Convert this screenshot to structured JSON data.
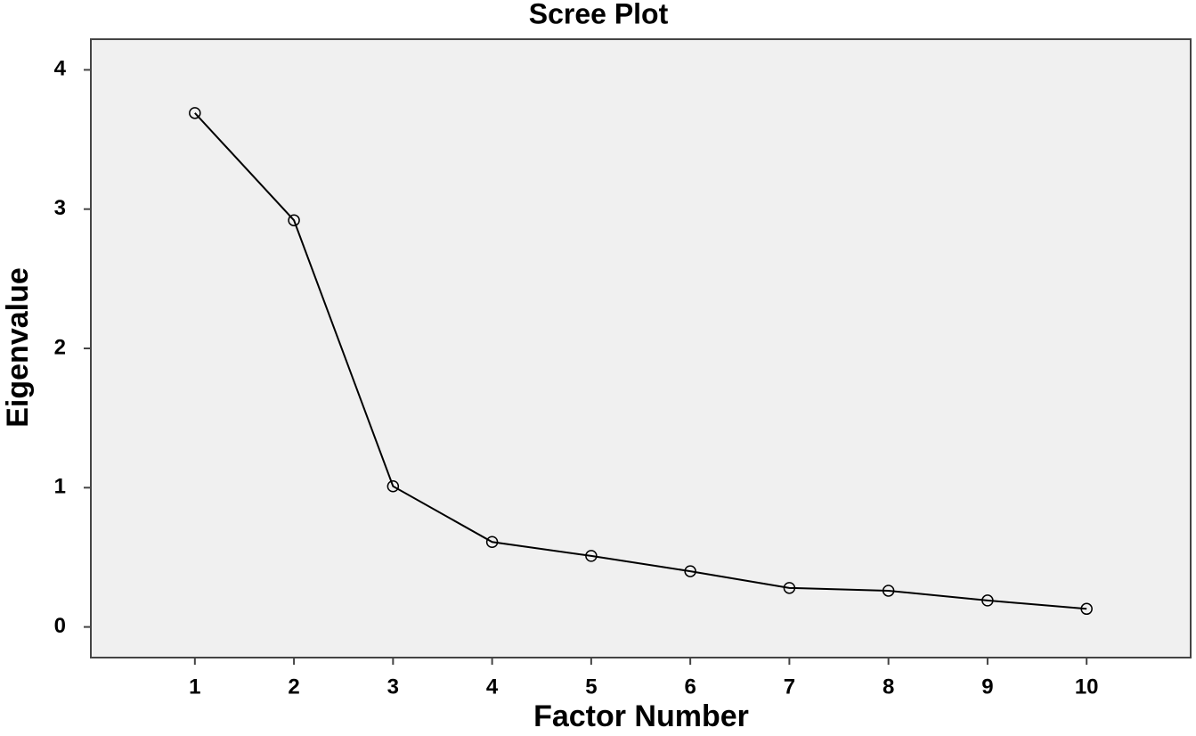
{
  "chart_data": {
    "type": "line",
    "title": "Scree Plot",
    "x_label": "Factor Number",
    "y_label": "Eigenvalue",
    "x": [
      1,
      2,
      3,
      4,
      5,
      6,
      7,
      8,
      9,
      10
    ],
    "values": [
      3.69,
      2.92,
      1.01,
      0.61,
      0.51,
      0.4,
      0.28,
      0.26,
      0.19,
      0.13
    ],
    "color": "#000000",
    "plot_background": "#f0f0f0",
    "marker": "circle",
    "xlim": [
      -0.05,
      11.05
    ],
    "xticks": [
      1,
      2,
      3,
      4,
      5,
      6,
      7,
      8,
      9,
      10
    ],
    "ylim": [
      -0.22,
      4.22
    ],
    "yticks": [
      0,
      1,
      2,
      3,
      4
    ],
    "grid": false
  }
}
